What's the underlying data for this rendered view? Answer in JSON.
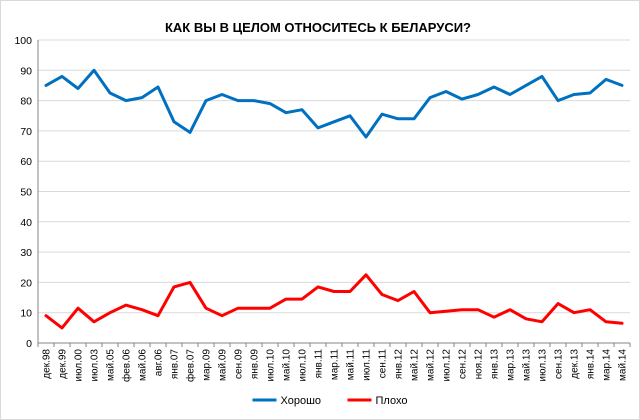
{
  "chart_data": {
    "type": "line",
    "title": "КАК ВЫ В ЦЕЛОМ ОТНОСИТЕСЬ К БЕЛАРУСИ?",
    "xlabel": "",
    "ylabel": "",
    "ylim": [
      0,
      100
    ],
    "yticks": [
      0,
      10,
      20,
      30,
      40,
      50,
      60,
      70,
      80,
      90,
      100
    ],
    "grid": true,
    "legend_position": "bottom",
    "categories": [
      "дек.98",
      "дек.99",
      "июл.00",
      "июл.03",
      "май.05",
      "фев.06",
      "май.06",
      "авг.06",
      "янв.07",
      "фев.07",
      "мар.09",
      "май.09",
      "сен.09",
      "янв.09",
      "июл.10",
      "май.10",
      "июл.10",
      "янв.11",
      "мар.11",
      "май.11",
      "июл.11",
      "сен.11",
      "янв.12",
      "май.12",
      "май.12",
      "июл.12",
      "сен.12",
      "ноя.12",
      "янв.13",
      "мар.13",
      "май.13",
      "июл.13",
      "сен.13",
      "дек.13",
      "янв.14",
      "мар.14",
      "май.14"
    ],
    "series": [
      {
        "name": "Хорошо",
        "color": "#0070c0",
        "values": [
          85,
          88,
          84,
          90,
          82.5,
          80,
          81,
          84.5,
          73,
          69.5,
          80,
          82,
          80,
          80,
          79,
          76,
          77,
          71,
          73,
          75,
          68,
          75.5,
          74,
          74,
          81,
          83,
          80.5,
          82,
          84.5,
          82,
          85,
          88,
          80,
          82,
          82.5,
          87,
          85
        ]
      },
      {
        "name": "Плохо",
        "color": "#ff0000",
        "values": [
          9,
          5,
          11.5,
          7,
          10,
          12.5,
          11,
          9,
          18.5,
          20,
          11.5,
          9,
          11.5,
          11.5,
          11.5,
          14.5,
          14.5,
          18.5,
          17,
          17,
          22.5,
          16,
          14,
          17,
          10,
          10.5,
          11,
          11,
          8.5,
          11,
          8,
          7,
          13,
          10,
          11,
          7,
          6.5
        ]
      }
    ]
  }
}
